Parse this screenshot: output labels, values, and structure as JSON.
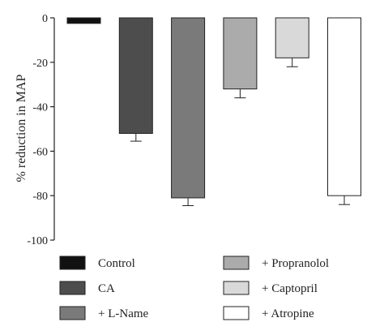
{
  "chart_data": {
    "type": "bar",
    "title": "",
    "xlabel": "",
    "ylabel": "% reduction in MAP",
    "ylim": [
      -100,
      0
    ],
    "yticks": [
      0,
      -20,
      -40,
      -60,
      -80,
      -100
    ],
    "grid": false,
    "legend_position": "bottom",
    "series": [
      {
        "name": "Control",
        "value": -2.5,
        "error": 0,
        "color": "#111111"
      },
      {
        "name": "CA",
        "value": -52,
        "error": 3.5,
        "color": "#4d4d4d"
      },
      {
        "name": "+ L-Name",
        "value": -81,
        "error": 3.5,
        "color": "#7a7a7a"
      },
      {
        "name": "+ Propranolol",
        "value": -32,
        "error": 4,
        "color": "#ababab"
      },
      {
        "name": "+ Captopril",
        "value": -18,
        "error": 4,
        "color": "#d9d9d9"
      },
      {
        "name": "+ Atropine",
        "value": -80,
        "error": 4,
        "color": "#ffffff"
      }
    ]
  }
}
